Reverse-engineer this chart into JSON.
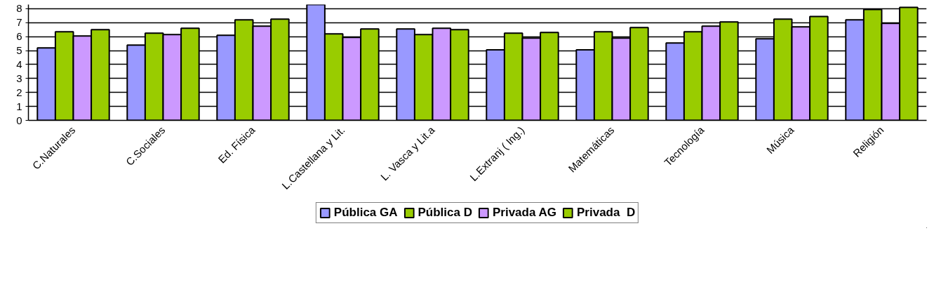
{
  "chart_data": {
    "type": "bar",
    "categories": [
      "C.Naturales",
      "C.Sociales",
      "Ed. Física",
      "L.Castellana y Lit.",
      "L. Vasca y Lit.a",
      "L.Extranj ( Ing.)",
      "Matemáticas",
      "Tecnología",
      "Música",
      "Religión"
    ],
    "series": [
      {
        "name": "Pública GA",
        "color": "#9999ff",
        "values": [
          5.2,
          5.4,
          6.1,
          8.3,
          6.55,
          5.05,
          5.05,
          5.55,
          5.85,
          7.2
        ]
      },
      {
        "name": "Pública D",
        "color": "#99cc00",
        "values": [
          6.35,
          6.25,
          7.2,
          6.2,
          6.15,
          6.25,
          6.35,
          6.35,
          7.25,
          7.95
        ]
      },
      {
        "name": "Privada AG",
        "color": "#cc99ff",
        "values": [
          6.05,
          6.15,
          6.75,
          5.95,
          6.6,
          5.9,
          5.9,
          6.75,
          6.7,
          6.95
        ]
      },
      {
        "name": "Privada  D",
        "color": "#99cc00",
        "values": [
          6.5,
          6.6,
          7.25,
          6.55,
          6.5,
          6.3,
          6.65,
          7.05,
          7.45,
          8.1
        ]
      }
    ],
    "ylim": [
      0,
      8.3
    ],
    "yticks": [
      0,
      1,
      2,
      3,
      4,
      5,
      6,
      7,
      8
    ],
    "grid": "y",
    "legend": "bottom"
  }
}
